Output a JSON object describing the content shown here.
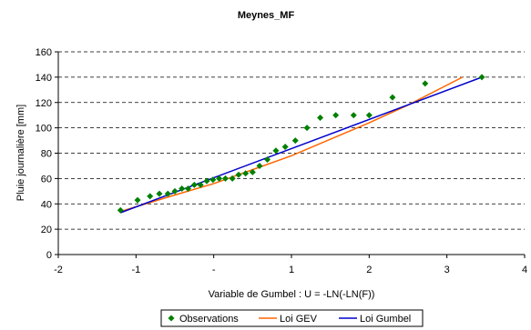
{
  "chart_data": {
    "type": "scatter",
    "title": "Meynes_MF",
    "xlabel": "Variable de Gumbel : U = -LN(-LN(F))",
    "ylabel": "Pluie journalière [mm]",
    "xlim": [
      -2,
      4
    ],
    "ylim": [
      0,
      160
    ],
    "xticks": [
      -2,
      -1,
      0,
      1,
      2,
      3,
      4
    ],
    "xtick_labels": [
      "-2",
      "-1",
      "-",
      "1",
      "2",
      "3",
      "4"
    ],
    "yticks": [
      0,
      20,
      40,
      60,
      80,
      100,
      120,
      140,
      160
    ],
    "grid": "horizontal dashed",
    "legend_position": "bottom",
    "series": [
      {
        "name": "Observations",
        "kind": "scatter",
        "color": "#008000",
        "marker": "diamond",
        "x": [
          -1.2,
          -0.98,
          -0.82,
          -0.7,
          -0.59,
          -0.5,
          -0.41,
          -0.33,
          -0.25,
          -0.17,
          -0.09,
          -0.01,
          0.07,
          0.15,
          0.24,
          0.32,
          0.41,
          0.5,
          0.59,
          0.69,
          0.8,
          0.92,
          1.05,
          1.2,
          1.37,
          1.57,
          1.8,
          2.0,
          2.3,
          2.72,
          3.45
        ],
        "y": [
          35,
          43,
          46,
          48,
          48,
          50,
          52,
          52,
          55,
          55,
          58,
          59,
          60,
          60,
          60,
          63,
          64,
          65,
          70,
          75,
          82,
          85,
          90,
          100,
          108,
          110,
          110,
          110,
          124,
          135,
          140
        ]
      },
      {
        "name": "Loi GEV",
        "kind": "line",
        "color": "#ff6600",
        "x": [
          -1.2,
          -0.5,
          0.0,
          0.5,
          1.0,
          1.5,
          2.0,
          2.5,
          3.2
        ],
        "y": [
          34,
          47,
          56,
          67,
          78,
          91,
          104,
          118,
          140
        ]
      },
      {
        "name": "Loi Gumbel",
        "kind": "line",
        "color": "#0000cc",
        "x": [
          -1.2,
          3.45
        ],
        "y": [
          33,
          140
        ]
      }
    ]
  }
}
